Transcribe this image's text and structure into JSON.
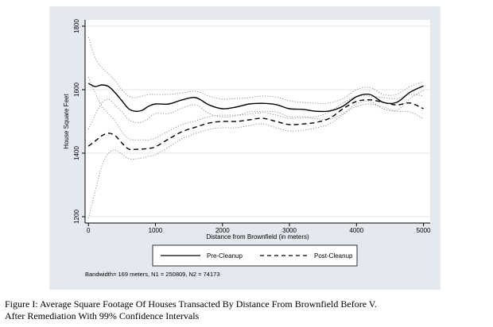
{
  "caption": {
    "line1": "Figure I: Average Square Footage Of Houses Transacted By Distance From Brownfield Before V.",
    "line2": "After Remediation With 99% Confidence Intervals"
  },
  "note": "Bandwidth= 169 meters, N1 = 250809, N2 = 74173",
  "chart_data": {
    "type": "line",
    "title": "",
    "xlabel": "Distance from Brownfield (in meters)",
    "ylabel": "House Square Feet",
    "xlim": [
      -50,
      5100
    ],
    "ylim": [
      1180,
      1820
    ],
    "x_ticks": [
      0,
      1000,
      2000,
      3000,
      4000,
      5000
    ],
    "x_tick_labels": [
      "0",
      "1000",
      "2000",
      "3000",
      "4000",
      "5000"
    ],
    "y_ticks": [
      1200,
      1400,
      1600,
      1800
    ],
    "y_tick_labels": [
      "1200",
      "1400",
      "1600",
      "1800"
    ],
    "grid": "horizontal",
    "legend_position": "bottom",
    "x": [
      0,
      100,
      200,
      300,
      400,
      500,
      600,
      700,
      800,
      900,
      1000,
      1200,
      1400,
      1600,
      1800,
      2000,
      2200,
      2400,
      2600,
      2800,
      3000,
      3200,
      3400,
      3600,
      3800,
      4000,
      4200,
      4400,
      4600,
      4800,
      5000
    ],
    "series": [
      {
        "name": "Pre-Cleanup",
        "style": "solid",
        "color": "#000000",
        "values": [
          1620,
          1610,
          1615,
          1610,
          1590,
          1565,
          1540,
          1532,
          1535,
          1548,
          1555,
          1555,
          1568,
          1575,
          1552,
          1540,
          1545,
          1555,
          1557,
          1553,
          1540,
          1538,
          1532,
          1533,
          1548,
          1578,
          1585,
          1560,
          1560,
          1592,
          1612
        ]
      },
      {
        "name": "Post-Cleanup",
        "style": "dashed",
        "color": "#000000",
        "values": [
          1422,
          1438,
          1455,
          1463,
          1455,
          1432,
          1413,
          1412,
          1413,
          1415,
          1420,
          1445,
          1468,
          1482,
          1495,
          1500,
          1500,
          1505,
          1510,
          1500,
          1490,
          1492,
          1497,
          1510,
          1540,
          1563,
          1568,
          1560,
          1552,
          1558,
          1540
        ]
      },
      {
        "name": "Pre-Cleanup upper CI",
        "style": "dotted",
        "color": "#888888",
        "values": [
          1765,
          1700,
          1670,
          1650,
          1628,
          1600,
          1580,
          1575,
          1580,
          1585,
          1585,
          1585,
          1590,
          1595,
          1580,
          1570,
          1572,
          1575,
          1580,
          1577,
          1565,
          1560,
          1557,
          1558,
          1572,
          1600,
          1607,
          1585,
          1585,
          1610,
          1625
        ]
      },
      {
        "name": "Pre-Cleanup lower CI",
        "style": "dotted",
        "color": "#888888",
        "values": [
          1475,
          1520,
          1558,
          1570,
          1550,
          1530,
          1505,
          1497,
          1498,
          1510,
          1525,
          1525,
          1542,
          1552,
          1525,
          1514,
          1518,
          1530,
          1532,
          1530,
          1515,
          1515,
          1508,
          1508,
          1525,
          1555,
          1563,
          1540,
          1535,
          1572,
          1598
        ]
      },
      {
        "name": "Post-Cleanup upper CI",
        "style": "dotted",
        "color": "#888888",
        "values": [
          1640,
          1590,
          1548,
          1525,
          1500,
          1467,
          1445,
          1442,
          1442,
          1442,
          1448,
          1470,
          1490,
          1502,
          1515,
          1520,
          1520,
          1523,
          1528,
          1520,
          1510,
          1512,
          1515,
          1530,
          1558,
          1578,
          1580,
          1575,
          1572,
          1585,
          1580
        ]
      },
      {
        "name": "Post-Cleanup lower CI",
        "style": "dotted",
        "color": "#888888",
        "values": [
          1195,
          1280,
          1360,
          1400,
          1410,
          1397,
          1383,
          1382,
          1385,
          1390,
          1395,
          1420,
          1446,
          1462,
          1475,
          1480,
          1480,
          1487,
          1492,
          1480,
          1470,
          1472,
          1480,
          1492,
          1522,
          1547,
          1555,
          1545,
          1532,
          1530,
          1508
        ]
      }
    ],
    "legend": [
      "Pre-Cleanup",
      "Post-Cleanup"
    ]
  }
}
